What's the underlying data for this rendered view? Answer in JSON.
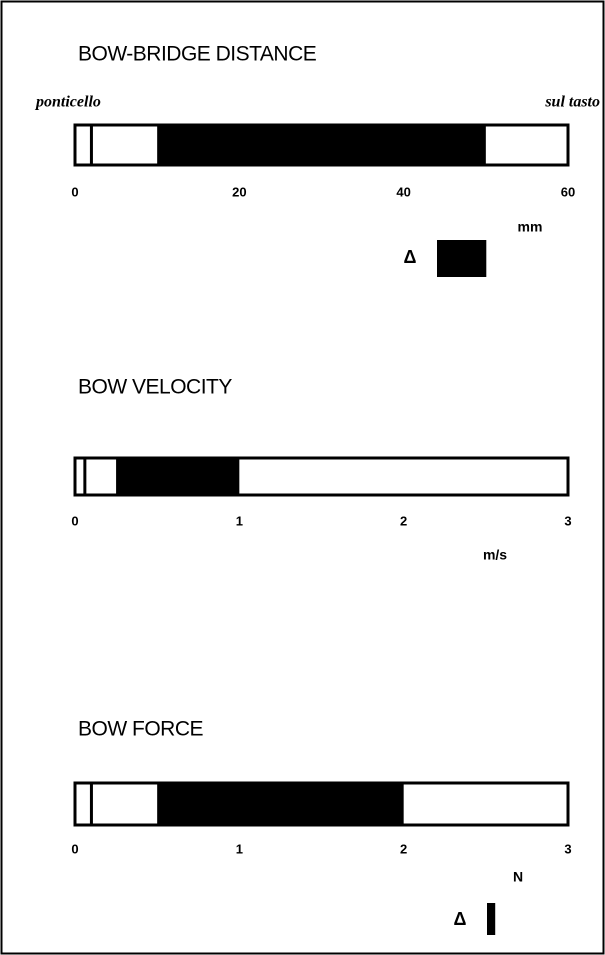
{
  "chart_data": [
    {
      "type": "range",
      "title": "BOW-BRIDGE DISTANCE",
      "left_label": "ponticello",
      "right_label": "sul tasto",
      "xlim": [
        0,
        60
      ],
      "xticks": [
        0,
        20,
        40,
        60
      ],
      "xlabel": "mm",
      "divider": 2,
      "range": [
        10,
        50
      ],
      "delta_label": "Δ",
      "delta": 6,
      "color": "#000000"
    },
    {
      "type": "range",
      "title": "BOW  VELOCITY",
      "xlim": [
        0,
        3
      ],
      "xticks": [
        0,
        1,
        2,
        3
      ],
      "xlabel": "m/s",
      "divider": 0.06,
      "range": [
        0.25,
        1
      ],
      "color": "#000000"
    },
    {
      "type": "range",
      "title": "BOW FORCE",
      "xlim": [
        0,
        3
      ],
      "xticks": [
        0,
        1,
        2,
        3
      ],
      "xlabel": "N",
      "divider": 0.1,
      "range": [
        0.5,
        2
      ],
      "delta_label": "Δ",
      "delta": 0.05,
      "color": "#000000"
    }
  ]
}
